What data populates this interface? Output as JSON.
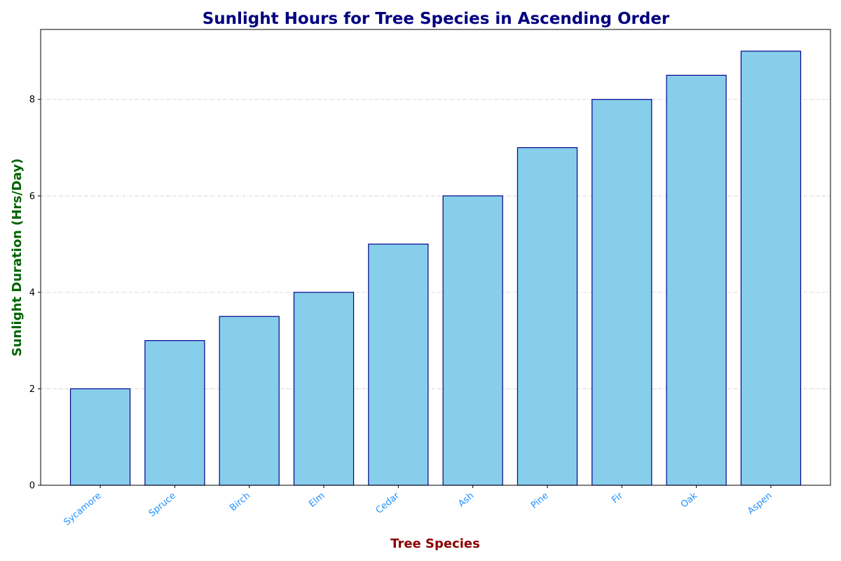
{
  "chart_data": {
    "type": "bar",
    "title": "Sunlight Hours for Tree Species in Ascending Order",
    "xlabel": "Tree Species",
    "ylabel": "Sunlight Duration (Hrs/Day)",
    "categories": [
      "Sycamore",
      "Spruce",
      "Birch",
      "Elm",
      "Cedar",
      "Ash",
      "Pine",
      "Fir",
      "Oak",
      "Aspen"
    ],
    "values": [
      2,
      3,
      3.5,
      4,
      5,
      6,
      7,
      8,
      8.5,
      9
    ],
    "ylim": [
      0,
      9.45
    ],
    "yticks": [
      0,
      2,
      4,
      6,
      8
    ],
    "grid": "y-axis dash-dot",
    "colors": {
      "bar_fill": "#87ceeb",
      "bar_edge": "#00008b",
      "title": "#000080",
      "xlabel": "#8b0000",
      "ylabel": "#006400",
      "xtick": "#1e90ff"
    }
  }
}
